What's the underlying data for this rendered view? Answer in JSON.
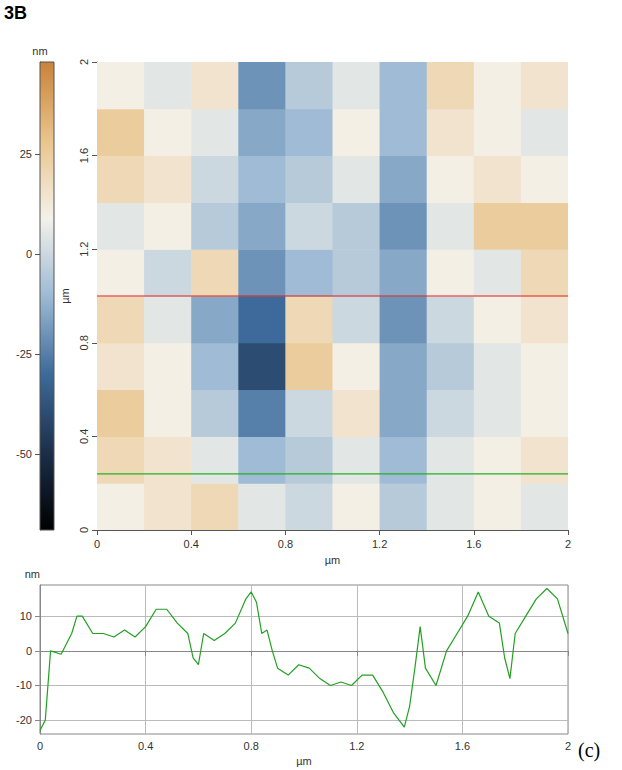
{
  "labels": {
    "figure": "3B",
    "panel": "(c)"
  },
  "chart_data": [
    {
      "type": "heatmap",
      "x_label": "µm",
      "y_label": "µm",
      "xlim": [
        0,
        2
      ],
      "ylim": [
        0,
        2
      ],
      "xticks": [
        0,
        0.4,
        0.8,
        1.2,
        1.6,
        2
      ],
      "yticks": [
        0,
        0.4,
        0.8,
        1.2,
        1.6,
        2
      ],
      "x_edges": [
        0,
        0.2,
        0.4,
        0.6,
        0.8,
        1,
        1.2,
        1.4,
        1.6,
        1.8,
        2
      ],
      "y_edges": [
        0,
        0.2,
        0.4,
        0.6,
        0.8,
        1,
        1.2,
        1.4,
        1.6,
        1.8,
        2
      ],
      "cells": [
        [
          10,
          15,
          20,
          5,
          0,
          10,
          -5,
          5,
          10,
          5
        ],
        [
          20,
          15,
          5,
          -10,
          -5,
          5,
          -10,
          5,
          10,
          15
        ],
        [
          25,
          10,
          -5,
          -25,
          0,
          15,
          -15,
          0,
          5,
          10
        ],
        [
          15,
          10,
          -10,
          -40,
          25,
          10,
          -15,
          -5,
          5,
          10
        ],
        [
          20,
          5,
          -15,
          -30,
          20,
          0,
          -20,
          0,
          10,
          15
        ],
        [
          10,
          0,
          20,
          -20,
          -10,
          -5,
          -15,
          10,
          5,
          20
        ],
        [
          5,
          10,
          -5,
          -15,
          0,
          -5,
          -20,
          5,
          25,
          25
        ],
        [
          20,
          15,
          0,
          -10,
          -5,
          5,
          -15,
          10,
          15,
          10
        ],
        [
          25,
          10,
          5,
          -15,
          -10,
          10,
          -10,
          15,
          10,
          5
        ],
        [
          10,
          5,
          15,
          -20,
          -5,
          5,
          -10,
          20,
          10,
          15
        ]
      ],
      "colorbar": {
        "label": "nm",
        "range": [
          -69,
          48
        ],
        "ticks": [
          25,
          0,
          -25,
          -50
        ]
      },
      "lines": [
        {
          "y": 1,
          "color": "#e0201c"
        },
        {
          "y": 0.24,
          "color": "#22b022"
        }
      ]
    },
    {
      "type": "line",
      "x_label": "µm",
      "y_label": "nm",
      "x": [
        0,
        0.02,
        0.04,
        0.08,
        0.12,
        0.14,
        0.16,
        0.2,
        0.24,
        0.28,
        0.32,
        0.36,
        0.4,
        0.44,
        0.48,
        0.52,
        0.56,
        0.58,
        0.6,
        0.62,
        0.66,
        0.7,
        0.74,
        0.78,
        0.8,
        0.82,
        0.84,
        0.86,
        0.88,
        0.9,
        0.94,
        0.98,
        1.02,
        1.06,
        1.1,
        1.14,
        1.18,
        1.22,
        1.26,
        1.3,
        1.34,
        1.38,
        1.4,
        1.42,
        1.44,
        1.46,
        1.5,
        1.54,
        1.58,
        1.62,
        1.66,
        1.7,
        1.74,
        1.76,
        1.78,
        1.8,
        1.84,
        1.88,
        1.92,
        1.96,
        2
      ],
      "values": [
        -23,
        -20,
        0,
        -1,
        5,
        10,
        10,
        5,
        5,
        4,
        6,
        4,
        7,
        12,
        12,
        8,
        5,
        -2,
        -4,
        5,
        3,
        5,
        8,
        15,
        17,
        14,
        5,
        6,
        0,
        -5,
        -7,
        -4,
        -5,
        -8,
        -10,
        -9,
        -10,
        -7,
        -7,
        -12,
        -18,
        -22,
        -16,
        -5,
        7,
        -5,
        -10,
        0,
        5,
        10,
        17,
        10,
        8,
        -2,
        -8,
        5,
        10,
        15,
        18,
        15,
        5
      ],
      "color": "#22a022",
      "xlim": [
        0,
        2
      ],
      "ylim": [
        -24,
        19
      ],
      "xticks": [
        0,
        0.4,
        0.8,
        1.2,
        1.6,
        2
      ],
      "yticks": [
        -20,
        -10,
        0,
        10
      ],
      "grid": true
    }
  ]
}
